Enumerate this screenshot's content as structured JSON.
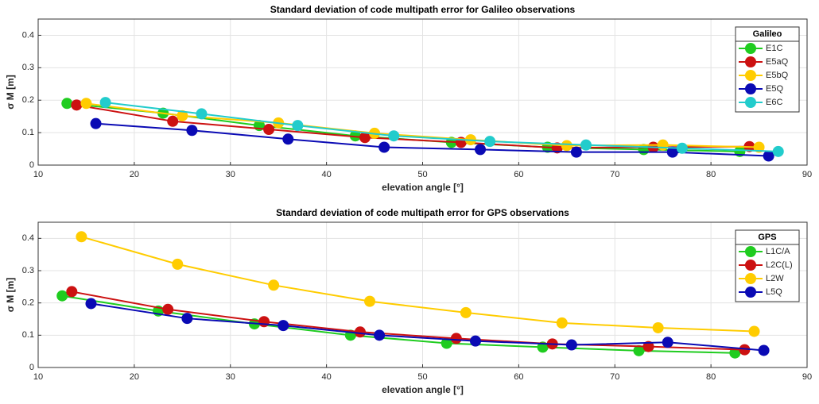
{
  "chart_data": [
    {
      "type": "line",
      "title": "Standard deviation of code multipath error for Galileo observations",
      "x_label": "elevation angle [°]",
      "y_label": "σ M [m]",
      "legend_title": "Galileo",
      "legend": "upper right",
      "grid": true,
      "xlim": [
        10,
        90
      ],
      "ylim": [
        0,
        0.45
      ],
      "xticks": [
        10,
        20,
        30,
        40,
        50,
        60,
        70,
        80,
        90
      ],
      "yticks": [
        0,
        0.1,
        0.2,
        0.3,
        0.4
      ],
      "series": [
        {
          "name": "E1C",
          "color": "#1fcc1f",
          "x": [
            13,
            23,
            33,
            43,
            53,
            63,
            73,
            83
          ],
          "values": [
            0.19,
            0.16,
            0.122,
            0.09,
            0.07,
            0.055,
            0.048,
            0.042
          ]
        },
        {
          "name": "E5aQ",
          "color": "#cc1111",
          "x": [
            14,
            24,
            34,
            44,
            54,
            64,
            74,
            84
          ],
          "values": [
            0.185,
            0.135,
            0.11,
            0.085,
            0.07,
            0.053,
            0.055,
            0.057
          ]
        },
        {
          "name": "E5bQ",
          "color": "#ffcc00",
          "x": [
            15,
            25,
            35,
            45,
            55,
            65,
            75,
            85
          ],
          "values": [
            0.19,
            0.152,
            0.13,
            0.098,
            0.078,
            0.06,
            0.062,
            0.055
          ]
        },
        {
          "name": "E5Q",
          "color": "#0a0ab4",
          "x": [
            16,
            26,
            36,
            46,
            56,
            66,
            76,
            86
          ],
          "values": [
            0.128,
            0.107,
            0.08,
            0.055,
            0.048,
            0.04,
            0.04,
            0.028
          ]
        },
        {
          "name": "E6C",
          "color": "#22cccc",
          "x": [
            17,
            27,
            37,
            47,
            57,
            67,
            77,
            87
          ],
          "values": [
            0.193,
            0.158,
            0.122,
            0.09,
            0.073,
            0.062,
            0.052,
            0.042
          ]
        }
      ]
    },
    {
      "type": "line",
      "title": "Standard deviation of code multipath error for GPS observations",
      "x_label": "elevation angle [°]",
      "y_label": "σ M [m]",
      "legend_title": "GPS",
      "legend": "upper right",
      "grid": true,
      "xlim": [
        10,
        90
      ],
      "ylim": [
        0,
        0.45
      ],
      "xticks": [
        10,
        20,
        30,
        40,
        50,
        60,
        70,
        80,
        90
      ],
      "yticks": [
        0,
        0.1,
        0.2,
        0.3,
        0.4
      ],
      "series": [
        {
          "name": "L1C/A",
          "color": "#1fcc1f",
          "x": [
            12.5,
            22.5,
            32.5,
            42.5,
            52.5,
            62.5,
            72.5,
            82.5
          ],
          "values": [
            0.222,
            0.175,
            0.135,
            0.1,
            0.075,
            0.063,
            0.052,
            0.045
          ]
        },
        {
          "name": "L2C(L)",
          "color": "#cc1111",
          "x": [
            13.5,
            23.5,
            33.5,
            43.5,
            53.5,
            63.5,
            73.5,
            83.5
          ],
          "values": [
            0.235,
            0.18,
            0.142,
            0.11,
            0.09,
            0.073,
            0.065,
            0.055
          ]
        },
        {
          "name": "L2W",
          "color": "#ffcc00",
          "x": [
            14.5,
            24.5,
            34.5,
            44.5,
            54.5,
            64.5,
            74.5,
            84.5
          ],
          "values": [
            0.405,
            0.32,
            0.255,
            0.205,
            0.17,
            0.138,
            0.123,
            0.112
          ]
        },
        {
          "name": "L5Q",
          "color": "#0a0ab4",
          "x": [
            15.5,
            25.5,
            35.5,
            45.5,
            55.5,
            65.5,
            75.5,
            85.5
          ],
          "values": [
            0.198,
            0.152,
            0.13,
            0.1,
            0.082,
            0.07,
            0.078,
            0.053
          ]
        }
      ]
    }
  ]
}
